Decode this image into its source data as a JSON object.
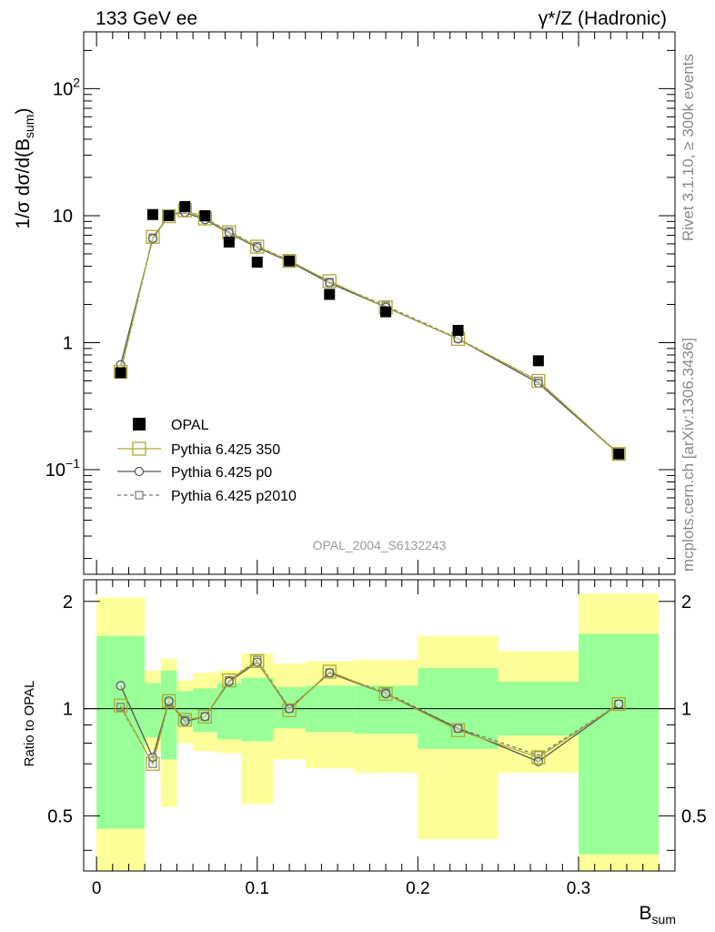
{
  "header": {
    "left_label": "133 GeV ee",
    "right_label": "γ*/Z (Hadronic)"
  },
  "side_labels": {
    "rivet": "Rivet 3.1.10, ≥ 300k events",
    "mcplots": "mcplots.cern.ch [arXiv:1306.3436]"
  },
  "watermark": "OPAL_2004_S6132243",
  "colors": {
    "band_inner": "#99ff99",
    "band_outer": "#ffff99",
    "pythia_350": "#aaaa33",
    "pythia_p0": "#555555",
    "pythia_p2010": "#777777",
    "data": "#000000"
  },
  "legend": {
    "opal": "OPAL",
    "p350": "Pythia 6.425 350",
    "p0": "Pythia 6.425 p0",
    "p2010": "Pythia 6.425 p2010"
  },
  "chart_data": {
    "type": "scatter",
    "xlabel_main": "B",
    "xlabel_sub": "sum",
    "ylabel_main": "1/σ dσ/d(B",
    "ylabel_sub": "sum",
    "ylabel_close": ")",
    "ratio_ylabel": "Ratio to OPAL",
    "x_range": [
      -0.008,
      0.36
    ],
    "y_range_main": [
      0.015,
      280
    ],
    "y_scale_main": "log",
    "y_range_ratio": [
      0.35,
      2.3
    ],
    "y_scale_ratio": "log",
    "x_ticks": [
      {
        "value": 0,
        "label": "0"
      },
      {
        "value": 0.1,
        "label": "0.1"
      },
      {
        "value": 0.2,
        "label": "0.2"
      },
      {
        "value": 0.3,
        "label": "0.3"
      }
    ],
    "y_ticks_main": [
      {
        "value": 0.1,
        "base": "10",
        "exp": "−1"
      },
      {
        "value": 1,
        "base": "1",
        "exp": ""
      },
      {
        "value": 10,
        "base": "10",
        "exp": ""
      },
      {
        "value": 100,
        "base": "10",
        "exp": "2"
      }
    ],
    "y_ticks_ratio": [
      {
        "value": 0.5,
        "label": "0.5"
      },
      {
        "value": 1,
        "label": "1"
      },
      {
        "value": 2,
        "label": "2"
      }
    ],
    "bins": [
      {
        "lo": 0.0,
        "hi": 0.03,
        "x": 0.015,
        "opal": 0.58,
        "r_inner": [
          0.46,
          1.6
        ],
        "r_outer": [
          0.34,
          2.05
        ]
      },
      {
        "lo": 0.03,
        "hi": 0.04,
        "x": 0.035,
        "opal": 10.2,
        "r_inner": [
          0.83,
          1.18
        ],
        "r_outer": [
          0.76,
          1.28
        ]
      },
      {
        "lo": 0.04,
        "hi": 0.05,
        "x": 0.045,
        "opal": 10.0,
        "r_inner": [
          0.72,
          1.28
        ],
        "r_outer": [
          0.53,
          1.38
        ]
      },
      {
        "lo": 0.05,
        "hi": 0.06,
        "x": 0.055,
        "opal": 11.8,
        "r_inner": [
          0.9,
          1.12
        ],
        "r_outer": [
          0.8,
          1.2
        ]
      },
      {
        "lo": 0.06,
        "hi": 0.075,
        "x": 0.0675,
        "opal": 10.0,
        "r_inner": [
          0.86,
          1.14
        ],
        "r_outer": [
          0.76,
          1.26
        ]
      },
      {
        "lo": 0.075,
        "hi": 0.09,
        "x": 0.0825,
        "opal": 6.2,
        "r_inner": [
          0.82,
          1.18
        ],
        "r_outer": [
          0.75,
          1.28
        ]
      },
      {
        "lo": 0.09,
        "hi": 0.11,
        "x": 0.1,
        "opal": 4.3,
        "r_inner": [
          0.81,
          1.22
        ],
        "r_outer": [
          0.54,
          1.43
        ]
      },
      {
        "lo": 0.11,
        "hi": 0.13,
        "x": 0.12,
        "opal": 4.4,
        "r_inner": [
          0.88,
          1.15
        ],
        "r_outer": [
          0.72,
          1.34
        ]
      },
      {
        "lo": 0.13,
        "hi": 0.16,
        "x": 0.145,
        "opal": 2.4,
        "r_inner": [
          0.86,
          1.16
        ],
        "r_outer": [
          0.68,
          1.36
        ]
      },
      {
        "lo": 0.16,
        "hi": 0.2,
        "x": 0.18,
        "opal": 1.75,
        "r_inner": [
          0.85,
          1.16
        ],
        "r_outer": [
          0.66,
          1.37
        ]
      },
      {
        "lo": 0.2,
        "hi": 0.25,
        "x": 0.225,
        "opal": 1.25,
        "r_inner": [
          0.77,
          1.3
        ],
        "r_outer": [
          0.43,
          1.6
        ]
      },
      {
        "lo": 0.25,
        "hi": 0.3,
        "x": 0.275,
        "opal": 0.72,
        "r_inner": [
          0.84,
          1.19
        ],
        "r_outer": [
          0.66,
          1.45
        ]
      },
      {
        "lo": 0.3,
        "hi": 0.35,
        "x": 0.325,
        "opal": 0.133,
        "r_inner": [
          0.39,
          1.62
        ],
        "r_outer": [
          0.35,
          2.1
        ]
      }
    ],
    "series": [
      {
        "name": "Pythia 6.425 350",
        "style": "open-square-large",
        "x": [
          0.015,
          0.035,
          0.045,
          0.055,
          0.0675,
          0.0825,
          0.1,
          0.12,
          0.145,
          0.18,
          0.225,
          0.275,
          0.325
        ],
        "values": [
          0.59,
          6.8,
          9.9,
          11.0,
          9.5,
          7.4,
          5.7,
          4.4,
          3.05,
          1.9,
          1.07,
          0.5,
          0.133
        ],
        "ratio": [
          1.02,
          0.7,
          1.05,
          0.93,
          0.95,
          1.2,
          1.36,
          0.99,
          1.27,
          1.1,
          0.87,
          0.73,
          1.03
        ]
      },
      {
        "name": "Pythia 6.425 p0",
        "style": "open-circle",
        "x": [
          0.015,
          0.035,
          0.045,
          0.055,
          0.0675,
          0.0825,
          0.1,
          0.12,
          0.145,
          0.18,
          0.225,
          0.275,
          0.325
        ],
        "values": [
          0.67,
          6.6,
          10.1,
          10.6,
          9.3,
          7.3,
          5.6,
          4.35,
          2.95,
          1.9,
          1.07,
          0.48,
          0.133
        ],
        "ratio": [
          1.16,
          0.73,
          1.05,
          0.92,
          0.95,
          1.19,
          1.35,
          1.0,
          1.26,
          1.1,
          0.88,
          0.71,
          1.03
        ]
      },
      {
        "name": "Pythia 6.425 p2010",
        "style": "open-square-small-dashed",
        "x": [
          0.015,
          0.035,
          0.045,
          0.055,
          0.0675,
          0.0825,
          0.1,
          0.12,
          0.145,
          0.18,
          0.225,
          0.275,
          0.325
        ],
        "values": [
          0.59,
          6.7,
          9.9,
          11.1,
          9.6,
          7.5,
          5.75,
          4.45,
          3.0,
          1.95,
          1.08,
          0.5,
          0.133
        ],
        "ratio": [
          1.01,
          0.7,
          1.04,
          0.93,
          0.95,
          1.2,
          1.37,
          1.0,
          1.26,
          1.11,
          0.88,
          0.74,
          1.03
        ]
      }
    ]
  }
}
